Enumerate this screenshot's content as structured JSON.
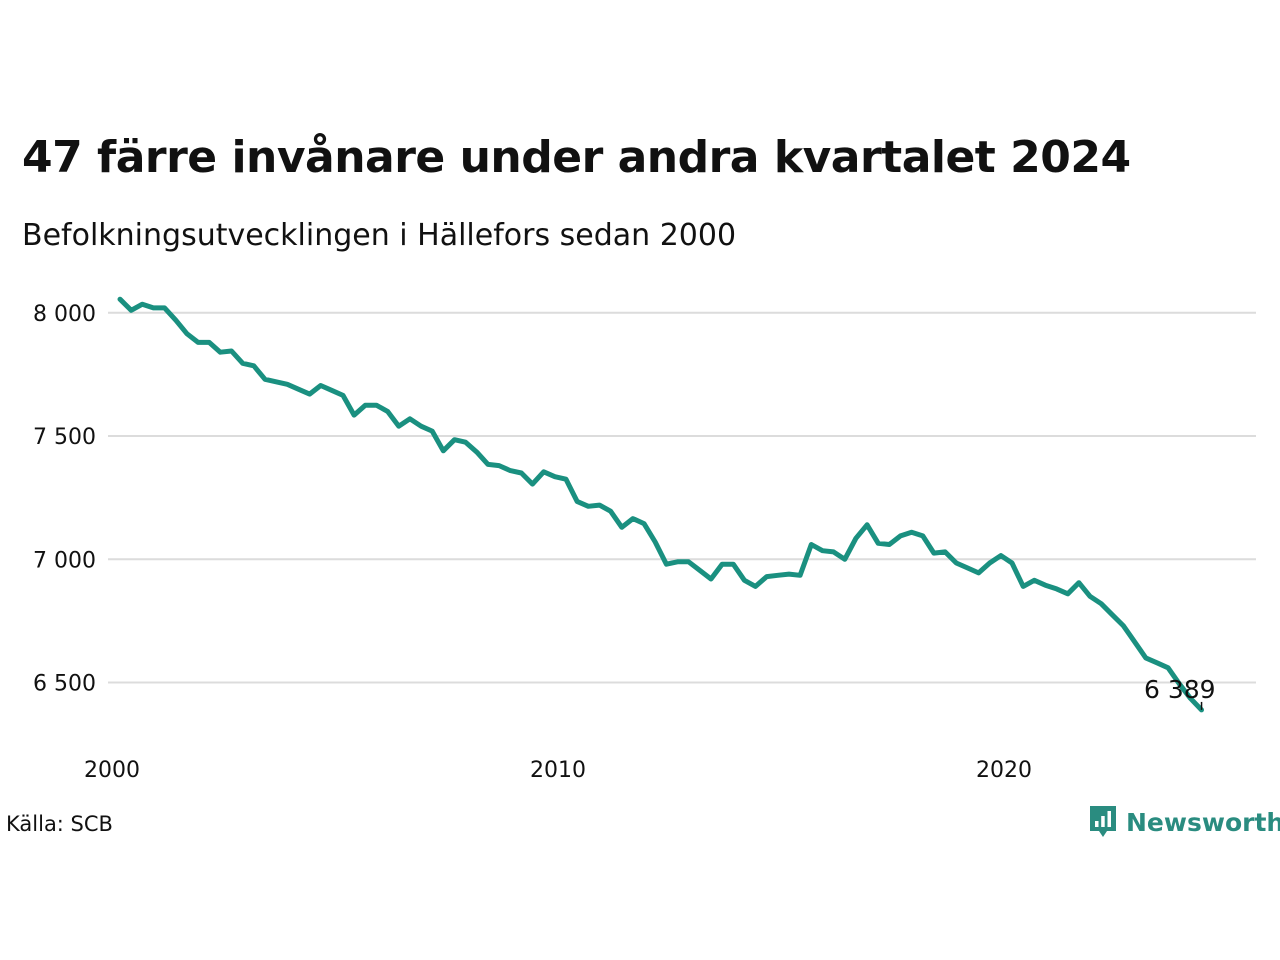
{
  "title": "47 färre invånare under andra kvartalet 2024",
  "subtitle": "Befolkningsutvecklingen i Hällefors sedan 2000",
  "source": "Källa: SCB",
  "brand": {
    "name": "Newsworthy",
    "icon": "newsworthy-logo-icon",
    "color": "#2a8c80"
  },
  "chart_data": {
    "type": "line",
    "title": "47 färre invånare under andra kvartalet 2024",
    "subtitle": "Befolkningsutvecklingen i Hällefors sedan 2000",
    "xlabel": "",
    "ylabel": "",
    "xlim": [
      2000,
      2025
    ],
    "ylim": [
      6340,
      8060
    ],
    "grid": true,
    "legend": "none",
    "line_color": "#1a9080",
    "x_ticks": [
      2000,
      2010,
      2020
    ],
    "x_tick_labels": [
      "2000",
      "2010",
      "2020"
    ],
    "y_ticks": [
      6500,
      7000,
      7500,
      8000
    ],
    "y_tick_labels": [
      "6 500",
      "7 000",
      "7 500",
      "8 000"
    ],
    "end_label": "6 389",
    "series": [
      {
        "x": [
          2000.0,
          2000.25,
          2000.5,
          2000.75,
          2001.0,
          2001.25,
          2001.5,
          2001.75,
          2002.0,
          2002.25,
          2002.5,
          2002.75,
          2003.0,
          2003.25,
          2003.5,
          2003.75,
          2004.0,
          2004.25,
          2004.5,
          2004.75,
          2005.0,
          2005.25,
          2005.5,
          2005.75,
          2006.0,
          2006.25,
          2006.5,
          2006.75,
          2007.0,
          2007.25,
          2007.5,
          2007.75,
          2008.0,
          2008.25,
          2008.5,
          2008.75,
          2009.0,
          2009.25,
          2009.5,
          2009.75,
          2010.0,
          2010.25,
          2010.5,
          2010.75,
          2011.0,
          2011.25,
          2011.5,
          2011.75,
          2012.0,
          2012.25,
          2012.5,
          2012.75,
          2013.0,
          2013.25,
          2013.5,
          2013.75,
          2014.0,
          2014.25,
          2014.5,
          2014.75,
          2015.0,
          2015.25,
          2015.5,
          2015.75,
          2016.0,
          2016.25,
          2016.5,
          2016.75,
          2017.0,
          2017.25,
          2017.5,
          2017.75,
          2018.0,
          2018.25,
          2018.5,
          2018.75,
          2019.0,
          2019.25,
          2019.5,
          2019.75,
          2020.0,
          2020.25,
          2020.5,
          2020.75,
          2021.0,
          2021.25,
          2021.5,
          2021.75,
          2022.0,
          2022.25,
          2022.5,
          2022.75,
          2023.0,
          2023.25,
          2023.5,
          2023.75,
          2024.0,
          2024.25
        ],
        "values": [
          8055,
          8010,
          8035,
          8020,
          8020,
          7970,
          7915,
          7880,
          7880,
          7840,
          7845,
          7795,
          7785,
          7730,
          7720,
          7710,
          7690,
          7670,
          7705,
          7685,
          7665,
          7585,
          7625,
          7625,
          7600,
          7540,
          7570,
          7540,
          7520,
          7440,
          7485,
          7475,
          7435,
          7385,
          7380,
          7360,
          7350,
          7305,
          7355,
          7335,
          7325,
          7235,
          7215,
          7220,
          7195,
          7130,
          7165,
          7145,
          7070,
          6980,
          6990,
          6990,
          6955,
          6920,
          6980,
          6980,
          6915,
          6890,
          6930,
          6935,
          6940,
          6935,
          7060,
          7035,
          7030,
          7000,
          7085,
          7140,
          7065,
          7060,
          7095,
          7110,
          7095,
          7025,
          7030,
          6985,
          6965,
          6945,
          6985,
          7015,
          6985,
          6890,
          6915,
          6895,
          6880,
          6860,
          6905,
          6850,
          6820,
          6775,
          6730,
          6665,
          6600,
          6580,
          6560,
          6495,
          6436,
          6389
        ]
      }
    ]
  }
}
